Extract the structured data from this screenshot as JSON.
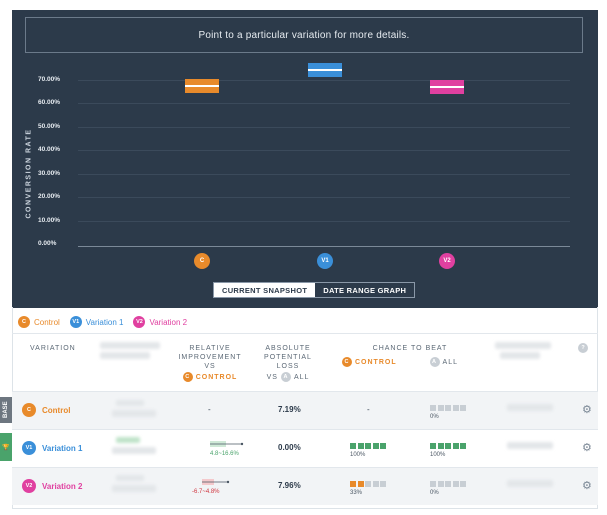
{
  "chart": {
    "hint": "Point to a particular variation for more details.",
    "y_axis_label": "CONVERSION RATE",
    "ticks": [
      "70.00%",
      "60.00%",
      "50.00%",
      "40.00%",
      "30.00%",
      "20.00%",
      "10.00%",
      "0.00%"
    ],
    "bars": [
      {
        "badge": "C",
        "color": "#e88a2b",
        "value": 0.68
      },
      {
        "badge": "V1",
        "color": "#3a8fd9",
        "value": 0.75
      },
      {
        "badge": "V2",
        "color": "#e040a0",
        "value": 0.675
      }
    ],
    "toggle": {
      "snapshot": "CURRENT SNAPSHOT",
      "date_range": "DATE RANGE GRAPH"
    }
  },
  "legend": [
    {
      "badge": "C",
      "label": "Control",
      "color": "#e88a2b"
    },
    {
      "badge": "V1",
      "label": "Variation 1",
      "color": "#3a8fd9"
    },
    {
      "badge": "V2",
      "label": "Variation 2",
      "color": "#e040a0"
    }
  ],
  "table": {
    "headers": {
      "variation": "VARIATION",
      "relative_1": "RELATIVE",
      "relative_2": "IMPROVEMENT",
      "relative_3": "VS",
      "relative_control": "CONTROL",
      "relative_badge": "C",
      "absolute_1": "ABSOLUTE",
      "absolute_2": "POTENTIAL",
      "absolute_3": "LOSS",
      "absolute_vs": "VS",
      "absolute_all": "ALL",
      "absolute_badge": "A",
      "chance": "CHANCE TO BEAT",
      "chance_control": "CONTROL",
      "chance_control_badge": "C",
      "chance_all": "ALL",
      "chance_all_badge": "A",
      "help": "?"
    },
    "rows": [
      {
        "badge": "C",
        "name": "Control",
        "color": "#e88a2b",
        "relative": "-",
        "range": "",
        "loss": "7.19%",
        "beat_control": "-",
        "beat_control_pct": "",
        "beat_all_pct": "0%",
        "side": "BASE"
      },
      {
        "badge": "V1",
        "name": "Variation 1",
        "color": "#3a8fd9",
        "relative": "",
        "range": "4.8~16.6%",
        "loss": "0.00%",
        "beat_control": "",
        "beat_control_pct": "100%",
        "beat_all_pct": "100%",
        "side": "🏆"
      },
      {
        "badge": "V2",
        "name": "Variation 2",
        "color": "#e040a0",
        "relative": "",
        "range": "-6.7~4.8%",
        "loss": "7.96%",
        "beat_control": "",
        "beat_control_pct": "33%",
        "beat_all_pct": "0%",
        "side": ""
      }
    ]
  },
  "colors": {
    "panel": "#2c3a4a",
    "green": "#4aa36b",
    "red": "#d0353f",
    "orange": "#e88a2b",
    "gray_tag": "#6d7680",
    "green_tag": "#4aa36b"
  }
}
